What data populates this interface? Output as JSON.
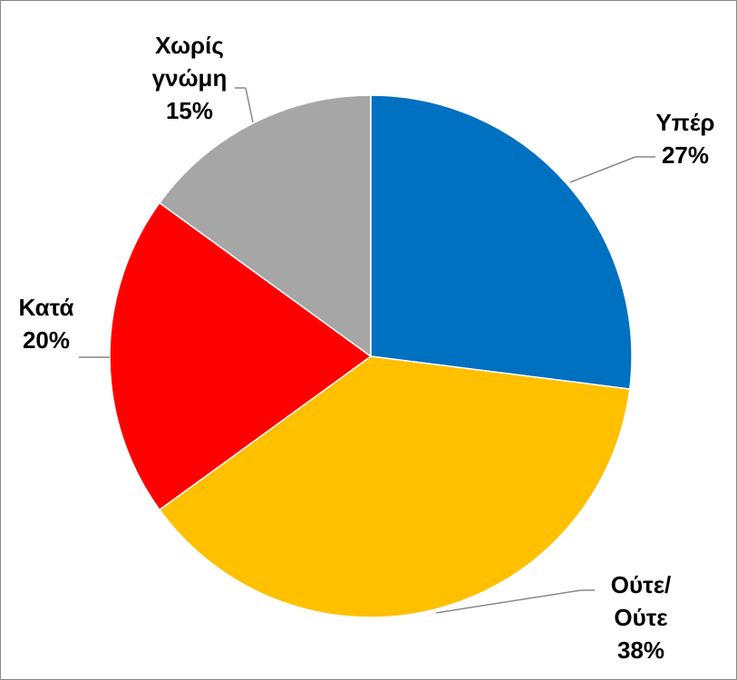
{
  "chart_data": {
    "type": "pie",
    "categories": [
      "Υπέρ",
      "Ούτε/ Ούτε",
      "Κατά",
      "Χωρίς γνώμη"
    ],
    "values": [
      27,
      38,
      20,
      15
    ],
    "value_labels": [
      "27%",
      "38%",
      "20%",
      "15%"
    ],
    "colors": [
      "#0070c0",
      "#ffc000",
      "#ff0000",
      "#a6a6a6"
    ]
  }
}
